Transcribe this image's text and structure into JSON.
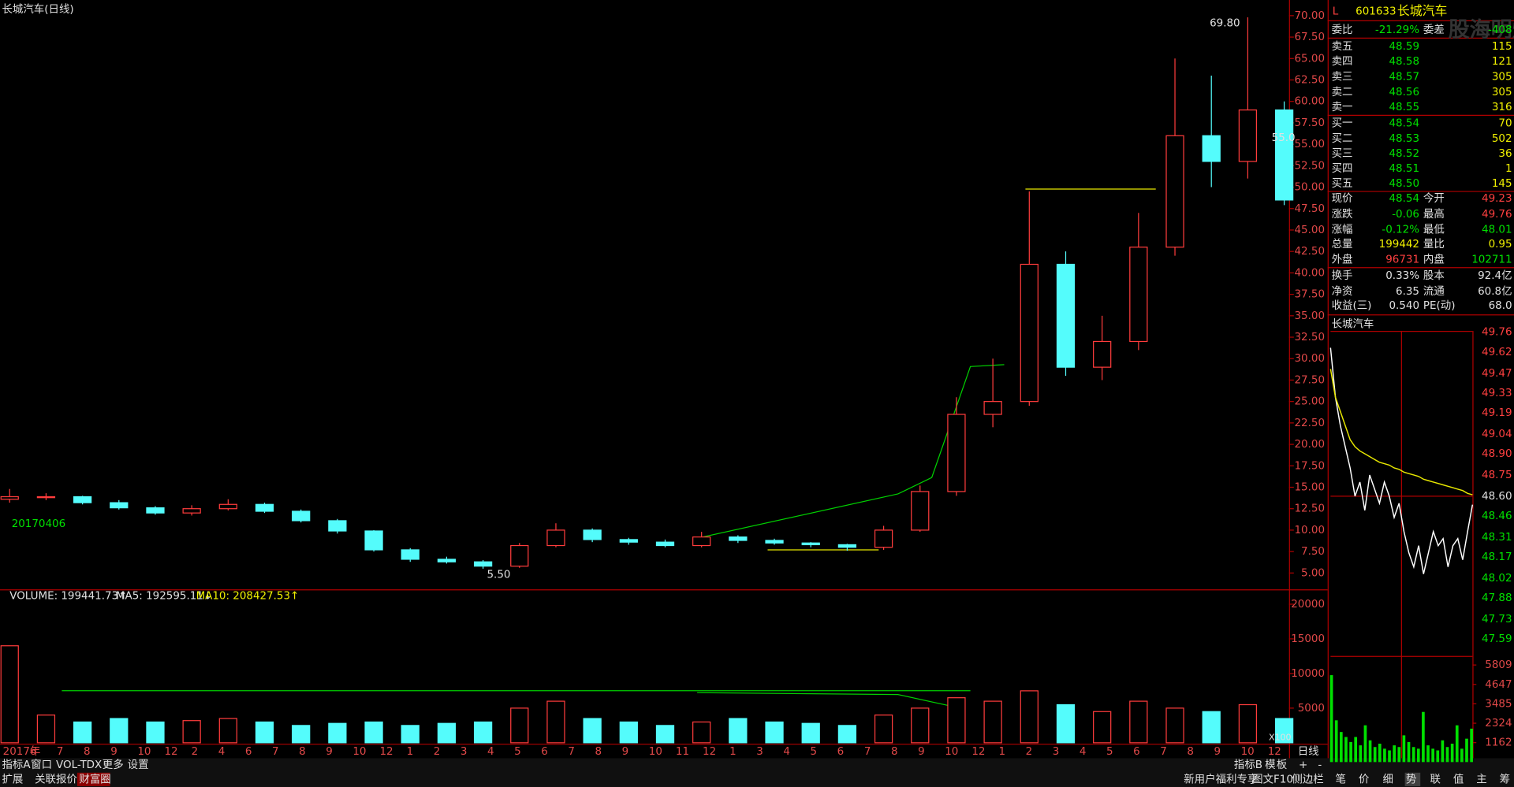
{
  "header": {
    "title": "长城汽车(日线)",
    "watermark": "股海明灯"
  },
  "chart_data": [
    {
      "type": "candlestick",
      "up_color": "#ff3c3c",
      "down_color": "#54fcfc",
      "open": [
        13.6,
        13.9,
        13.9,
        13.2,
        12.6,
        12.0,
        12.5,
        13.0,
        12.2,
        11.1,
        9.9,
        7.7,
        6.6,
        6.3,
        5.8,
        8.2,
        10.0,
        8.9,
        8.6,
        8.2,
        9.2,
        8.8,
        8.5,
        8.3,
        8.0,
        10.0,
        14.5,
        23.5,
        25,
        41,
        29,
        32,
        43,
        56,
        53,
        59
      ],
      "high": [
        14.8,
        14.3,
        14.0,
        13.5,
        12.8,
        12.9,
        13.6,
        13.2,
        12.4,
        11.3,
        10.0,
        7.9,
        6.9,
        6.5,
        8.5,
        10.8,
        10.2,
        9.1,
        8.9,
        9.8,
        9.4,
        9.0,
        8.6,
        8.4,
        10.5,
        15.2,
        25.5,
        30.0,
        49.5,
        42.5,
        35.0,
        47.0,
        65.0,
        63.0,
        69.8,
        60.0
      ],
      "low": [
        13.2,
        13.5,
        13.0,
        12.4,
        11.8,
        11.7,
        12.3,
        12.0,
        10.9,
        9.6,
        7.5,
        6.3,
        6.1,
        5.5,
        5.6,
        8.0,
        8.6,
        8.3,
        8.0,
        8.0,
        8.5,
        8.3,
        8.0,
        7.6,
        7.7,
        9.8,
        14.0,
        22.0,
        24.5,
        28.0,
        27.5,
        31.0,
        42.0,
        50.0,
        51.0,
        47.9
      ],
      "close": [
        13.9,
        13.9,
        13.2,
        12.6,
        12.0,
        12.5,
        13.0,
        12.2,
        11.1,
        9.9,
        7.7,
        6.6,
        6.3,
        5.8,
        8.2,
        10.0,
        8.9,
        8.6,
        8.2,
        9.2,
        8.8,
        8.5,
        8.3,
        8.0,
        10.0,
        14.5,
        23.5,
        25,
        41,
        29,
        32,
        43,
        56,
        53,
        59,
        48.5
      ],
      "ylim": [
        3.2,
        70.7
      ],
      "yticks": [
        {
          "value": 70,
          "label": "70.00"
        },
        {
          "value": 67.5,
          "label": "67.50"
        },
        {
          "value": 65,
          "label": "65.00"
        },
        {
          "value": 62.5,
          "label": "62.50"
        },
        {
          "value": 60,
          "label": "60.00"
        },
        {
          "value": 57.5,
          "label": "57.50"
        },
        {
          "value": 55,
          "label": "55.00"
        },
        {
          "value": 52.5,
          "label": "52.50"
        },
        {
          "value": 50,
          "label": "50.00"
        },
        {
          "value": 47.5,
          "label": "47.50"
        },
        {
          "value": 45,
          "label": "45.00"
        },
        {
          "value": 42.5,
          "label": "42.50"
        },
        {
          "value": 40,
          "label": "40.00"
        },
        {
          "value": 37.5,
          "label": "37.50"
        },
        {
          "value": 35,
          "label": "35.00"
        },
        {
          "value": 32.5,
          "label": "32.50"
        },
        {
          "value": 30,
          "label": "30.00"
        },
        {
          "value": 27.5,
          "label": "27.50"
        },
        {
          "value": 25,
          "label": "25.00"
        },
        {
          "value": 22.5,
          "label": "22.50"
        },
        {
          "value": 20,
          "label": "20.00"
        },
        {
          "value": 17.5,
          "label": "17.50"
        },
        {
          "value": 15,
          "label": "15.00"
        },
        {
          "value": 12.5,
          "label": "12.50"
        },
        {
          "value": 10,
          "label": "10.00"
        },
        {
          "value": 7.5,
          "label": "7.50"
        },
        {
          "value": 5,
          "label": "5.00"
        }
      ],
      "annotations": [
        "69.80",
        "5.50",
        "20170406",
        "55.0"
      ],
      "x_labels": [
        "2017年",
        "6",
        "7",
        "8",
        "9",
        "10",
        "12",
        "2",
        "4",
        "6",
        "7",
        "8",
        "9",
        "10",
        "12",
        "1",
        "2",
        "3",
        "4",
        "5",
        "6",
        "7",
        "8",
        "9",
        "10",
        "11",
        "12",
        "1",
        "3",
        "4",
        "5",
        "6",
        "7",
        "8",
        "9",
        "10",
        "12",
        "1",
        "2",
        "3",
        "4",
        "5",
        "6",
        "7",
        "8",
        "9",
        "10",
        "12"
      ]
    },
    {
      "type": "bar",
      "legend": [
        "VOLUME: 199441.73↑",
        "MA5: 192595.11↓",
        "MA10: 208427.53↑"
      ],
      "values": [
        14000,
        4000,
        3000,
        3500,
        3000,
        3200,
        3500,
        3000,
        2500,
        2800,
        3000,
        2500,
        2800,
        3000,
        5000,
        6000,
        3500,
        3000,
        2500,
        3000,
        3500,
        3000,
        2800,
        2500,
        4000,
        5000,
        6500,
        6000,
        7500,
        5500,
        4500,
        6000,
        5000,
        4500,
        5500,
        3500
      ],
      "ylim": [
        0,
        22000
      ],
      "yticks": [
        5000,
        10000,
        15000,
        20000
      ],
      "unit_label": "X100",
      "period": "日线"
    },
    {
      "type": "line",
      "title": "长城汽车",
      "ylim": [
        47.47,
        49.79
      ],
      "yticks": [
        {
          "value": 49.76,
          "label": "49.76"
        },
        {
          "value": 49.62,
          "label": "49.62"
        },
        {
          "value": 49.47,
          "label": "49.47"
        },
        {
          "value": 49.33,
          "label": "49.33"
        },
        {
          "value": 49.19,
          "label": "49.19"
        },
        {
          "value": 49.04,
          "label": "49.04"
        },
        {
          "value": 48.9,
          "label": "48.90"
        },
        {
          "value": 48.75,
          "label": "48.75"
        },
        {
          "value": 48.6,
          "label": "48.60"
        },
        {
          "value": 48.46,
          "label": "48.46"
        },
        {
          "value": 48.31,
          "label": "48.31"
        },
        {
          "value": 48.17,
          "label": "48.17"
        },
        {
          "value": 48.02,
          "label": "48.02"
        },
        {
          "value": 47.88,
          "label": "47.88"
        },
        {
          "value": 47.73,
          "label": "47.73"
        },
        {
          "value": 47.59,
          "label": "47.59"
        }
      ],
      "series": [
        {
          "color": "#ffffff",
          "values": [
            49.65,
            49.3,
            49.1,
            48.95,
            48.8,
            48.6,
            48.7,
            48.5,
            48.75,
            48.65,
            48.55,
            48.7,
            48.6,
            48.45,
            48.55,
            48.35,
            48.2,
            48.1,
            48.25,
            48.05,
            48.2,
            48.35,
            48.25,
            48.3,
            48.1,
            48.25,
            48.3,
            48.15,
            48.35,
            48.54
          ]
        },
        {
          "color": "#e8e800",
          "values": [
            49.5,
            49.3,
            49.2,
            49.1,
            49.0,
            48.95,
            48.92,
            48.9,
            48.88,
            48.86,
            48.84,
            48.83,
            48.82,
            48.8,
            48.79,
            48.77,
            48.76,
            48.75,
            48.74,
            48.72,
            48.71,
            48.7,
            48.69,
            48.68,
            48.67,
            48.66,
            48.65,
            48.64,
            48.62,
            48.61
          ]
        }
      ]
    },
    {
      "type": "bar",
      "color": "#00e000",
      "ylim": [
        0,
        6350
      ],
      "yticks": [
        5809,
        4647,
        3485,
        2324,
        1162
      ],
      "values": [
        5200,
        2500,
        1800,
        1500,
        1200,
        1500,
        1000,
        2200,
        1300,
        900,
        1100,
        800,
        700,
        1000,
        900,
        1600,
        1200,
        900,
        800,
        3000,
        1000,
        800,
        700,
        1300,
        900,
        1100,
        2200,
        800,
        1400,
        2000
      ]
    }
  ],
  "quote": {
    "flag": "L",
    "code": "601633",
    "name": "长城汽车",
    "ratio": [
      "委比",
      "-21.29%",
      "委差",
      "-408"
    ],
    "asks": [
      [
        "卖五",
        "48.59",
        "115"
      ],
      [
        "卖四",
        "48.58",
        "121"
      ],
      [
        "卖三",
        "48.57",
        "305"
      ],
      [
        "卖二",
        "48.56",
        "305"
      ],
      [
        "卖一",
        "48.55",
        "316"
      ]
    ],
    "bids": [
      [
        "买一",
        "48.54",
        "70"
      ],
      [
        "买二",
        "48.53",
        "502"
      ],
      [
        "买三",
        "48.52",
        "36"
      ],
      [
        "买四",
        "48.51",
        "1"
      ],
      [
        "买五",
        "48.50",
        "145"
      ]
    ],
    "stats": [
      [
        "现价",
        "48.54",
        "今开",
        "49.23"
      ],
      [
        "涨跌",
        "-0.06",
        "最高",
        "49.76"
      ],
      [
        "涨幅",
        "-0.12%",
        "最低",
        "48.01"
      ],
      [
        "总量",
        "199442",
        "量比",
        "0.95"
      ],
      [
        "外盘",
        "96731",
        "内盘",
        "102711"
      ],
      [
        "换手",
        "0.33%",
        "股本",
        "92.4亿"
      ],
      [
        "净资",
        "6.35",
        "流通",
        "60.8亿"
      ],
      [
        "收益(三)",
        "0.540",
        "PE(动)",
        "68.0"
      ]
    ]
  },
  "tabs": {
    "row1_left": [
      "指标A",
      "窗口",
      "VOL-TDX",
      "更多",
      "设置"
    ],
    "row1_right": [
      "指标B",
      "模",
      "板",
      "+",
      "-"
    ],
    "row2_left": [
      "扩展",
      "关联报价",
      "财富圈"
    ],
    "row2_right": [
      "新用户福利专享",
      "图文F10",
      "侧边栏"
    ],
    "side": [
      "笔",
      "价",
      "细",
      "势",
      "联",
      "值",
      "主",
      "筹"
    ]
  }
}
